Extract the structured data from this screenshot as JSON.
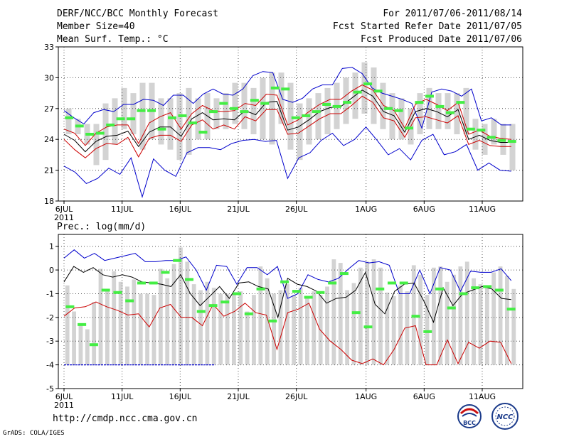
{
  "header": {
    "title": "DERF/NCC/BCC Monthly Forecast",
    "member_size": "Member Size=40",
    "variable": "Mean Surf. Temp.: °C",
    "period": "For 2011/07/06-2011/08/14",
    "started": "Fcst Started Refer Date 2011/07/05",
    "produced": "Fcst Produced Date 2011/07/06"
  },
  "footer": {
    "url": "http://cmdp.ncc.cma.gov.cn",
    "credit": "GrADS: COLA/IGES"
  },
  "logos": {
    "bcc": "BCC",
    "ncc": "NCC"
  },
  "colors": {
    "max": "#0000cc",
    "min_line": "#cc0000",
    "mean": "#000000",
    "obs": "#44ee44",
    "bar": "#d3d3d3",
    "grid": "#555555"
  },
  "chart_data": [
    {
      "type": "line",
      "title": "Mean Surf. Temp.: °C",
      "x_tick_labels": [
        "6JUL",
        "11JUL",
        "16JUL",
        "21JUL",
        "26JUL",
        "1AUG",
        "6AUG",
        "11AUG"
      ],
      "x_tick_days": [
        0,
        5,
        10,
        15,
        20,
        26,
        31,
        36
      ],
      "x_sublabel": "2011",
      "ylim": [
        18,
        33
      ],
      "y_ticks": [
        18,
        21,
        24,
        27,
        30,
        33
      ],
      "bars": [
        [
          24.5,
          27.0
        ],
        [
          24.5,
          26.0
        ],
        [
          23.5,
          25.5
        ],
        [
          21.5,
          25.5
        ],
        [
          22.0,
          27.5
        ],
        [
          23.5,
          28.0
        ],
        [
          25.0,
          29.0
        ],
        [
          24.5,
          28.5
        ],
        [
          23.0,
          29.5
        ],
        [
          24.0,
          29.5
        ],
        [
          23.5,
          28.0
        ],
        [
          23.0,
          28.0
        ],
        [
          22.0,
          28.5
        ],
        [
          22.5,
          29.0
        ],
        [
          24.0,
          28.0
        ],
        [
          24.0,
          28.5
        ],
        [
          25.0,
          28.0
        ],
        [
          25.0,
          28.5
        ],
        [
          25.5,
          29.5
        ],
        [
          25.0,
          29.5
        ],
        [
          24.5,
          29.0
        ],
        [
          24.0,
          30.0
        ],
        [
          23.5,
          30.5
        ],
        [
          25.5,
          30.5
        ],
        [
          23.0,
          29.5
        ],
        [
          22.0,
          27.5
        ],
        [
          23.5,
          28.0
        ],
        [
          24.0,
          28.5
        ],
        [
          24.5,
          29.0
        ],
        [
          25.0,
          29.5
        ],
        [
          25.5,
          30.0
        ],
        [
          26.0,
          30.5
        ],
        [
          26.5,
          31.5
        ],
        [
          25.5,
          31.0
        ],
        [
          25.0,
          29.5
        ],
        [
          24.0,
          28.5
        ],
        [
          24.0,
          28.0
        ],
        [
          23.5,
          27.0
        ],
        [
          24.5,
          28.5
        ],
        [
          25.0,
          29.0
        ],
        [
          25.0,
          28.5
        ],
        [
          25.0,
          28.5
        ],
        [
          24.5,
          28.5
        ],
        [
          24.5,
          29.0
        ],
        [
          23.0,
          26.0
        ],
        [
          22.5,
          25.5
        ],
        [
          23.5,
          26.0
        ],
        [
          22.5,
          25.5
        ],
        [
          21.0,
          25.5
        ]
      ],
      "series": [
        {
          "name": "max",
          "values": [
            26.8,
            26.1,
            25.5,
            26.6,
            26.9,
            26.7,
            27.4,
            27.4,
            27.9,
            27.8,
            27.3,
            28.3,
            28.3,
            27.5,
            28.4,
            28.9,
            28.4,
            28.3,
            28.9,
            30.2,
            30.6,
            30.5,
            27.9,
            27.6,
            28.0,
            28.9,
            29.3,
            29.3,
            30.9,
            31.0,
            30.4,
            29.0,
            28.5,
            28.2,
            27.9,
            27.5,
            25.1,
            28.6,
            28.9,
            28.7,
            28.2,
            28.9,
            25.8,
            26.1,
            25.4,
            25.4
          ]
        },
        {
          "name": "mean",
          "values": [
            24.5,
            23.9,
            22.8,
            23.8,
            24.3,
            24.4,
            24.8,
            23.3,
            24.7,
            25.2,
            25.2,
            24.3,
            26.0,
            26.6,
            25.9,
            26.0,
            25.9,
            26.8,
            26.4,
            27.6,
            27.7,
            24.9,
            25.2,
            25.9,
            26.7,
            27.1,
            27.2,
            28.0,
            28.8,
            28.2,
            26.7,
            26.3,
            24.7,
            26.7,
            27.0,
            26.7,
            26.2,
            26.9,
            24.0,
            24.4,
            23.9,
            23.7,
            23.7
          ]
        },
        {
          "name": "upper",
          "values": [
            25.0,
            24.6,
            23.4,
            24.6,
            25.2,
            25.4,
            25.4,
            23.6,
            25.6,
            26.2,
            26.6,
            25.0,
            26.5,
            27.3,
            26.8,
            26.7,
            26.8,
            27.5,
            27.3,
            28.4,
            28.3,
            25.4,
            25.9,
            26.7,
            27.4,
            27.9,
            27.9,
            28.7,
            29.3,
            28.8,
            27.3,
            26.8,
            25.1,
            27.4,
            27.9,
            27.4,
            26.8,
            27.6,
            24.5,
            24.9,
            24.3,
            24.1,
            24.0
          ]
        },
        {
          "name": "lower",
          "values": [
            24.0,
            23.0,
            22.2,
            23.1,
            23.6,
            23.5,
            24.2,
            22.3,
            24.1,
            24.4,
            24.4,
            23.8,
            25.4,
            25.9,
            25.0,
            25.4,
            25.0,
            26.2,
            25.8,
            26.9,
            26.9,
            24.5,
            24.6,
            25.3,
            26.0,
            26.5,
            26.5,
            27.3,
            28.2,
            27.6,
            26.1,
            25.8,
            24.2,
            26.1,
            26.2,
            25.9,
            25.6,
            26.3,
            23.5,
            23.9,
            23.4,
            23.3,
            23.3
          ]
        },
        {
          "name": "min",
          "values": [
            21.4,
            20.8,
            19.7,
            20.2,
            21.2,
            20.6,
            22.2,
            18.4,
            22.1,
            21.0,
            20.4,
            22.7,
            23.2,
            23.2,
            23.0,
            23.6,
            23.9,
            24.0,
            23.8,
            23.9,
            20.2,
            22.2,
            22.7,
            23.9,
            24.6,
            23.4,
            24.0,
            25.2,
            23.9,
            22.5,
            23.1,
            22.0,
            23.9,
            24.5,
            22.5,
            22.8,
            23.5,
            21.0,
            21.7,
            21.0,
            20.9
          ]
        },
        {
          "name": "obs",
          "values": [
            26.1,
            25.3,
            24.5,
            24.6,
            25.4,
            26.0,
            26.0,
            26.8,
            26.8,
            25.0,
            26.1,
            26.3,
            25.6,
            24.7,
            26.7,
            27.5,
            27.0,
            26.7,
            27.8,
            27.5,
            29.0,
            28.9,
            26.1,
            26.3,
            26.7,
            27.4,
            27.2,
            27.6,
            28.6,
            29.4,
            28.7,
            27.0,
            26.8,
            25.1,
            27.6,
            28.2,
            27.2,
            26.6,
            27.6,
            25.0,
            24.9,
            24.2,
            23.9,
            23.8
          ]
        }
      ]
    },
    {
      "type": "line",
      "title": "Prec.: log(mm/d)",
      "x_tick_labels": [
        "6JUL",
        "11JUL",
        "16JUL",
        "21JUL",
        "26JUL",
        "1AUG",
        "6AUG",
        "11AUG"
      ],
      "x_tick_days": [
        0,
        5,
        10,
        15,
        20,
        26,
        31,
        36
      ],
      "x_sublabel": "2011",
      "ylim": [
        -5,
        1.5
      ],
      "y_ticks": [
        -5,
        -4,
        -3,
        -2,
        -1,
        0,
        1
      ],
      "bar_floor": -4,
      "bars": [
        -0.65,
        -1.75,
        -2.3,
        -2.5,
        -1.35,
        0.05,
        -0.85,
        -0.05,
        -0.5,
        -0.7,
        -0.4,
        -1.0,
        -1.0,
        -1.05,
        0.05,
        -0.35,
        0.25,
        0.95,
        0.35,
        -0.6,
        -0.85,
        -0.5,
        -0.75,
        -1.0,
        -1.0,
        -0.95,
        -0.9,
        -1.75,
        -1.05,
        0.15,
        -0.35,
        -1.0,
        -0.85,
        -0.6,
        -1.05,
        -0.75,
        -1.1,
        -0.9,
        -1.05,
        -0.7,
        0.45,
        0.3,
        -0.85,
        -0.55,
        0.1,
        0.35,
        0.45,
        0.1,
        -0.95,
        -1.1,
        -0.65,
        -0.9,
        0.2,
        -0.2,
        -1.05,
        0.1,
        0.15,
        -0.5,
        -0.2,
        0.15,
        0.35,
        -0.35,
        -0.6,
        -0.65,
        -0.1,
        0.15,
        -0.25,
        -0.8
      ],
      "series": [
        {
          "name": "max",
          "values": [
            0.5,
            0.85,
            0.5,
            0.7,
            0.4,
            0.5,
            0.6,
            0.7,
            0.35,
            0.35,
            0.4,
            0.4,
            0.55,
            0.0,
            -0.85,
            0.2,
            0.15,
            -0.6,
            0.1,
            0.1,
            -0.2,
            0.15,
            -1.2,
            -1.0,
            -0.2,
            -0.4,
            -0.5,
            -0.35,
            0.05,
            0.4,
            0.3,
            0.35,
            0.2,
            -1.0,
            -1.0,
            0.0,
            -1.0,
            0.1,
            0.0,
            -0.9,
            -0.05,
            -0.1,
            -0.1,
            0.05,
            -0.45
          ]
        },
        {
          "name": "mean",
          "values": [
            -0.5,
            0.15,
            -0.1,
            0.1,
            -0.2,
            -0.3,
            -0.2,
            -0.3,
            -0.5,
            -0.55,
            -0.6,
            -0.7,
            -0.2,
            -1.0,
            -1.5,
            -1.1,
            -0.7,
            -1.2,
            -0.55,
            -0.5,
            -0.7,
            -0.8,
            -2.0,
            -0.35,
            -0.6,
            -0.7,
            -0.9,
            -1.4,
            -1.2,
            -1.15,
            -0.85,
            -0.1,
            -1.45,
            -1.85,
            -0.9,
            -0.6,
            -0.55,
            -1.3,
            -2.2,
            -0.75,
            -1.5,
            -1.0,
            -0.85,
            -0.7,
            -0.8,
            -1.2,
            -1.25
          ]
        },
        {
          "name": "lower",
          "values": [
            -1.95,
            -1.6,
            -1.55,
            -1.35,
            -1.55,
            -1.7,
            -1.9,
            -1.85,
            -2.4,
            -1.6,
            -1.45,
            -2.0,
            -2.0,
            -2.35,
            -1.45,
            -1.95,
            -1.75,
            -1.4,
            -1.8,
            -1.9,
            -3.35,
            -1.8,
            -1.65,
            -1.4,
            -2.5,
            -3.0,
            -3.35,
            -3.8,
            -3.95,
            -3.75,
            -4.0,
            -3.35,
            -2.45,
            -2.35,
            -4.0,
            -4.0,
            -2.95,
            -3.95,
            -3.05,
            -3.3,
            -3.0,
            -3.05,
            -3.95
          ]
        },
        {
          "name": "obs",
          "values": [
            -1.55,
            -2.3,
            -3.15,
            -0.85,
            -0.95,
            -1.3,
            -0.55,
            -0.55,
            -0.1,
            0.4,
            -0.4,
            -1.75,
            -1.5,
            -1.35,
            -1.0,
            -1.85,
            -0.8,
            -2.15,
            -0.5,
            -0.9,
            -1.15,
            -0.95,
            -0.55,
            -0.15,
            -1.8,
            -2.4,
            -0.8,
            -0.55,
            -0.55,
            -1.95,
            -2.6,
            -0.8,
            -1.6,
            -1.0,
            -0.75,
            -0.7,
            -0.85,
            -1.65
          ]
        }
      ]
    }
  ]
}
